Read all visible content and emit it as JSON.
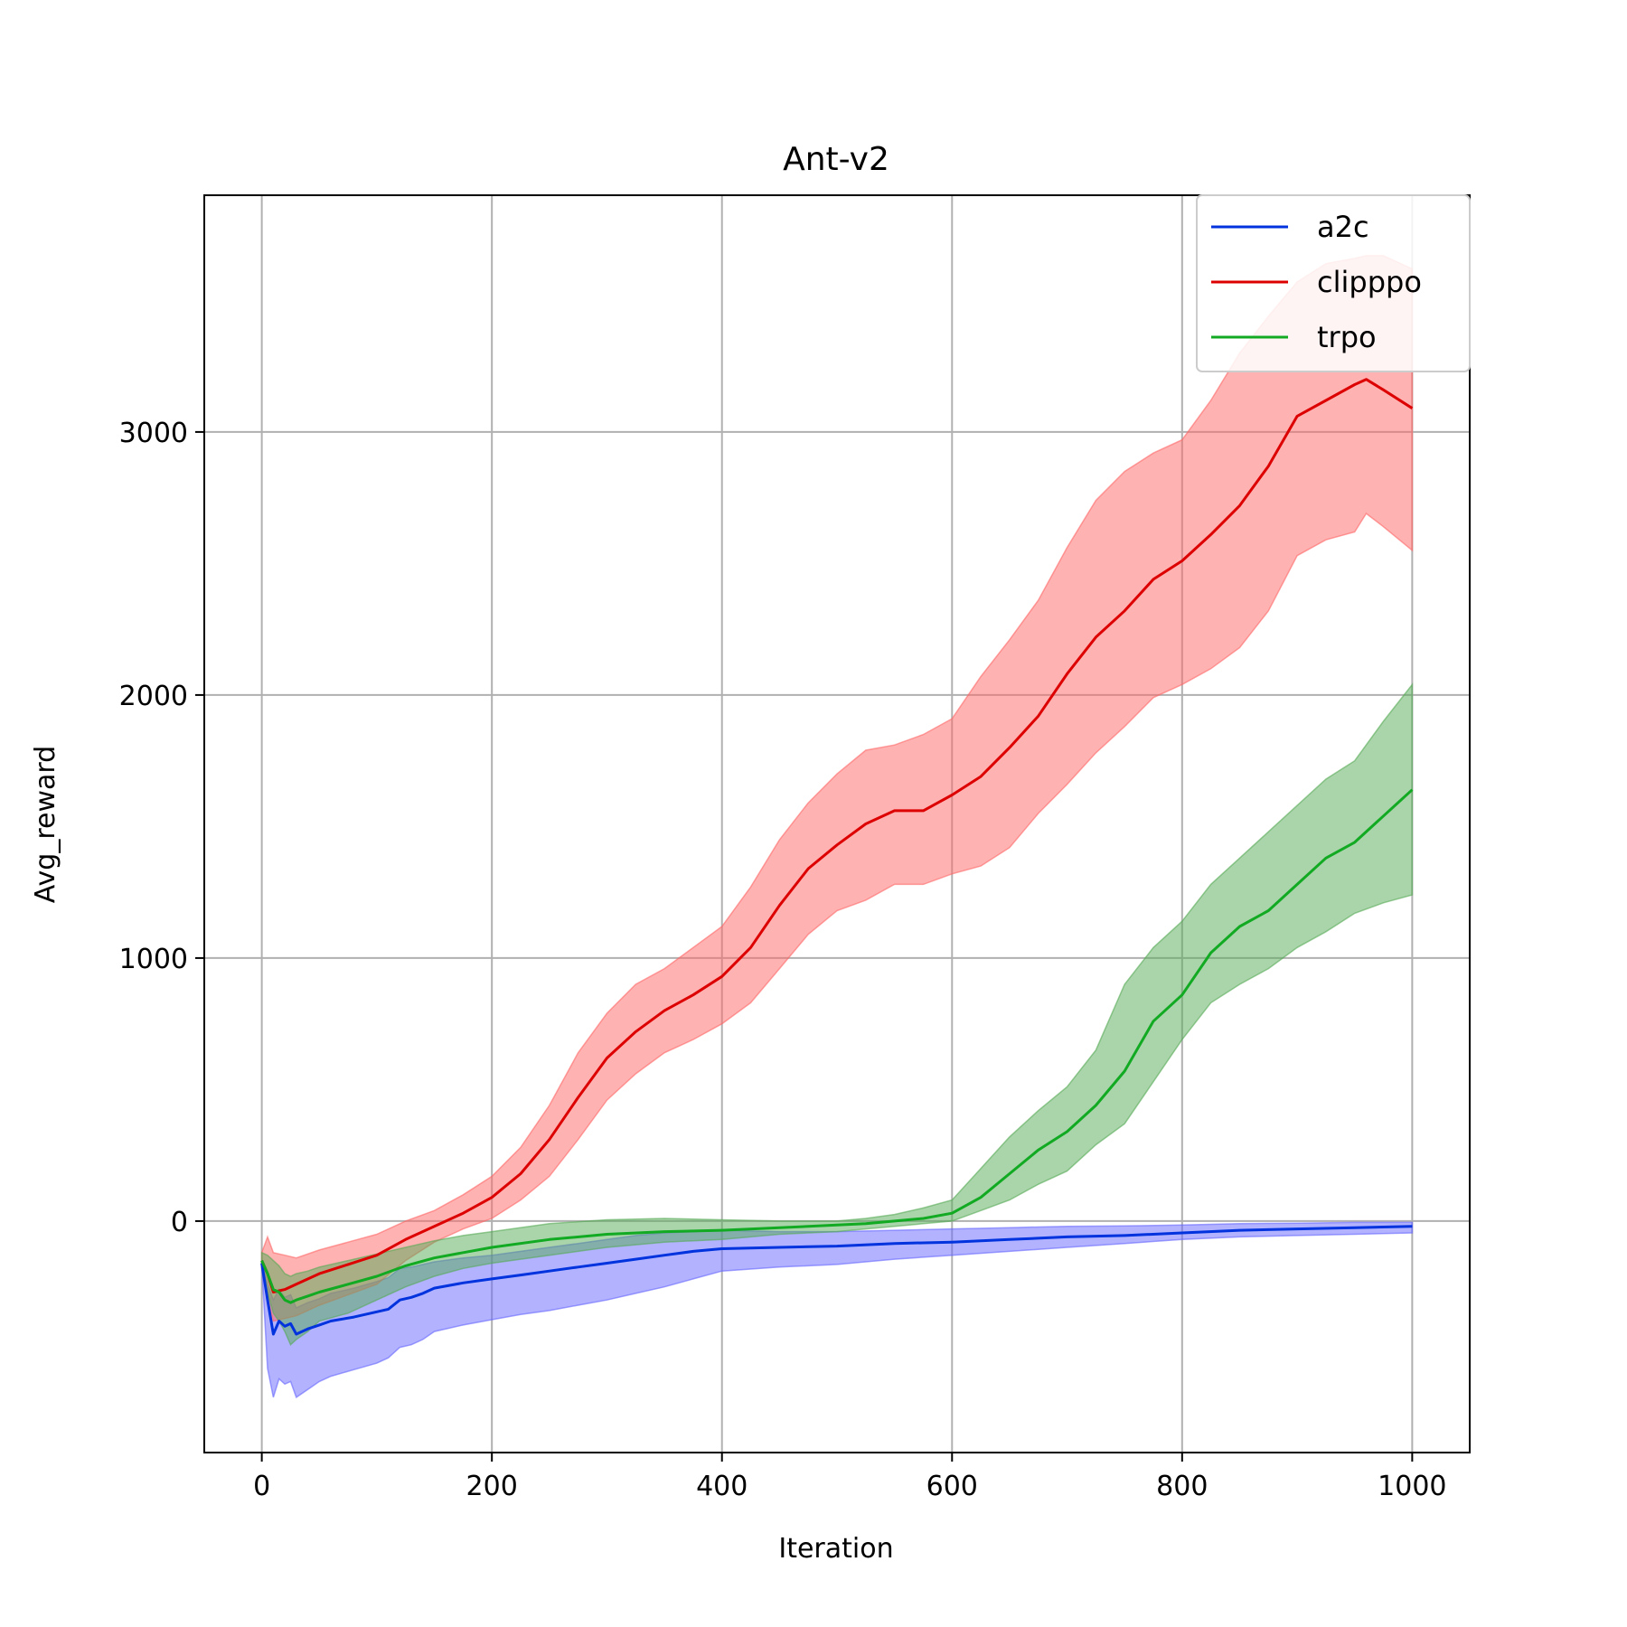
{
  "chart_data": {
    "type": "line",
    "title": "Ant-v2",
    "xlabel": "Iteration",
    "ylabel": "Avg_reward",
    "xlim": [
      -50,
      1050
    ],
    "ylim": [
      -880,
      3900
    ],
    "xticks": [
      0,
      200,
      400,
      600,
      800,
      1000
    ],
    "yticks": [
      0,
      1000,
      2000,
      3000
    ],
    "grid": true,
    "legend_position": "top-right",
    "series": [
      {
        "name": "a2c",
        "color": "#0033dd",
        "fill": "#6666ff",
        "x": [
          0,
          5,
          10,
          15,
          20,
          25,
          30,
          40,
          50,
          60,
          80,
          100,
          110,
          120,
          130,
          140,
          150,
          175,
          200,
          225,
          250,
          275,
          300,
          325,
          350,
          375,
          400,
          450,
          500,
          550,
          600,
          650,
          700,
          750,
          800,
          850,
          900,
          950,
          1000
        ],
        "values": [
          -160,
          -300,
          -430,
          -380,
          -400,
          -390,
          -430,
          -410,
          -395,
          -380,
          -365,
          -345,
          -335,
          -300,
          -290,
          -275,
          -255,
          -235,
          -220,
          -205,
          -190,
          -175,
          -160,
          -145,
          -130,
          -115,
          -105,
          -100,
          -95,
          -85,
          -80,
          -70,
          -60,
          -55,
          -45,
          -35,
          -30,
          -25,
          -20
        ],
        "upper": [
          -150,
          -240,
          -300,
          -260,
          -290,
          -280,
          -330,
          -310,
          -295,
          -275,
          -255,
          -230,
          -215,
          -180,
          -175,
          -165,
          -155,
          -140,
          -130,
          -115,
          -100,
          -85,
          -70,
          -55,
          -45,
          -40,
          -35,
          -40,
          -40,
          -35,
          -30,
          -25,
          -20,
          -18,
          -15,
          -10,
          -8,
          -5,
          -5
        ],
        "lower": [
          -170,
          -560,
          -670,
          -600,
          -620,
          -610,
          -670,
          -640,
          -610,
          -590,
          -565,
          -540,
          -520,
          -480,
          -470,
          -450,
          -420,
          -395,
          -375,
          -355,
          -340,
          -320,
          -300,
          -275,
          -250,
          -220,
          -190,
          -175,
          -165,
          -145,
          -130,
          -115,
          -100,
          -85,
          -70,
          -60,
          -55,
          -50,
          -45
        ]
      },
      {
        "name": "clipppo",
        "color": "#dd0000",
        "fill": "#ff6666",
        "x": [
          0,
          5,
          10,
          20,
          30,
          50,
          75,
          100,
          125,
          150,
          175,
          200,
          225,
          250,
          275,
          300,
          325,
          350,
          375,
          400,
          425,
          450,
          475,
          500,
          525,
          550,
          575,
          600,
          625,
          650,
          675,
          700,
          725,
          750,
          775,
          800,
          825,
          850,
          875,
          900,
          925,
          950,
          960,
          975,
          1000
        ],
        "values": [
          -150,
          -200,
          -270,
          -260,
          -240,
          -200,
          -165,
          -130,
          -70,
          -20,
          30,
          90,
          180,
          310,
          470,
          620,
          720,
          800,
          860,
          930,
          1040,
          1200,
          1340,
          1430,
          1510,
          1560,
          1560,
          1620,
          1690,
          1800,
          1920,
          2080,
          2220,
          2320,
          2440,
          2510,
          2610,
          2720,
          2870,
          3060,
          3120,
          3180,
          3200,
          3160,
          3090
        ],
        "upper": [
          -120,
          -60,
          -120,
          -130,
          -140,
          -110,
          -80,
          -50,
          0,
          40,
          100,
          170,
          280,
          440,
          640,
          790,
          900,
          960,
          1040,
          1120,
          1270,
          1450,
          1590,
          1700,
          1790,
          1810,
          1850,
          1910,
          2070,
          2210,
          2360,
          2560,
          2740,
          2850,
          2920,
          2970,
          3120,
          3300,
          3440,
          3570,
          3640,
          3660,
          3670,
          3670,
          3620
        ],
        "lower": [
          -180,
          -300,
          -380,
          -370,
          -360,
          -320,
          -280,
          -240,
          -150,
          -80,
          -30,
          10,
          80,
          170,
          310,
          460,
          560,
          640,
          690,
          750,
          830,
          960,
          1090,
          1180,
          1220,
          1280,
          1280,
          1320,
          1350,
          1420,
          1550,
          1660,
          1780,
          1880,
          1990,
          2040,
          2100,
          2180,
          2320,
          2530,
          2590,
          2620,
          2690,
          2640,
          2550
        ]
      },
      {
        "name": "trpo",
        "color": "#11aa22",
        "fill": "#55aa55",
        "x": [
          0,
          5,
          10,
          15,
          20,
          25,
          30,
          40,
          50,
          75,
          100,
          125,
          150,
          175,
          200,
          250,
          300,
          350,
          400,
          450,
          500,
          525,
          550,
          575,
          600,
          625,
          650,
          675,
          700,
          725,
          750,
          775,
          800,
          825,
          850,
          875,
          900,
          925,
          950,
          975,
          1000
        ],
        "values": [
          -150,
          -200,
          -260,
          -270,
          -300,
          -310,
          -300,
          -285,
          -270,
          -240,
          -210,
          -170,
          -140,
          -120,
          -100,
          -70,
          -50,
          -40,
          -35,
          -25,
          -15,
          -10,
          0,
          10,
          30,
          90,
          180,
          270,
          340,
          440,
          570,
          760,
          860,
          1020,
          1120,
          1180,
          1280,
          1380,
          1440,
          1540,
          1640
        ],
        "upper": [
          -120,
          -130,
          -150,
          -170,
          -200,
          -210,
          -200,
          -190,
          -175,
          -150,
          -125,
          -100,
          -75,
          -55,
          -40,
          -10,
          5,
          10,
          5,
          0,
          0,
          10,
          25,
          50,
          80,
          200,
          320,
          420,
          510,
          650,
          900,
          1040,
          1140,
          1280,
          1380,
          1480,
          1580,
          1680,
          1750,
          1900,
          2040
        ],
        "lower": [
          -180,
          -270,
          -350,
          -380,
          -420,
          -470,
          -450,
          -420,
          -380,
          -350,
          -300,
          -250,
          -210,
          -180,
          -160,
          -130,
          -100,
          -80,
          -70,
          -50,
          -40,
          -30,
          -20,
          -10,
          0,
          40,
          80,
          140,
          190,
          290,
          370,
          530,
          690,
          830,
          900,
          960,
          1040,
          1100,
          1170,
          1210,
          1240
        ]
      }
    ]
  }
}
